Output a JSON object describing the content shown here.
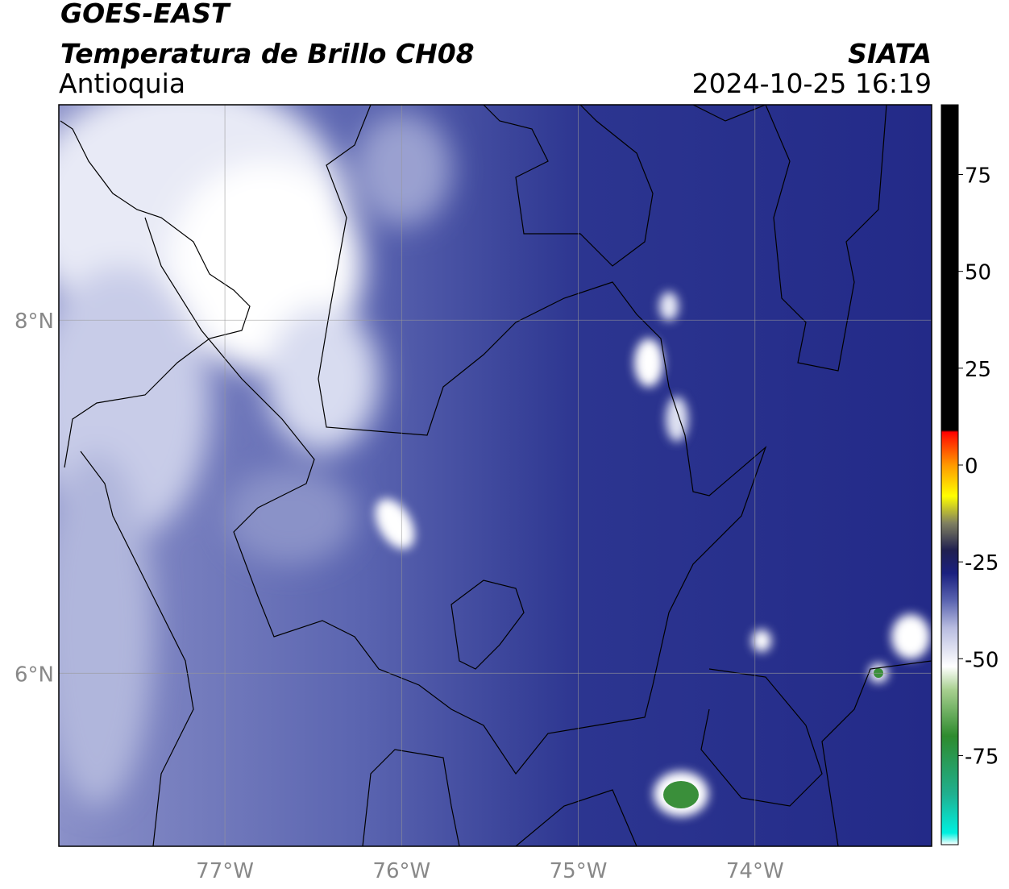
{
  "header": {
    "title": "GOES-EAST",
    "subtitle": "Temperatura de Brillo CH08",
    "region": "Antioquia",
    "source": "SIATA",
    "datetime": "2024-10-25 16:19"
  },
  "map": {
    "lonlim": [
      -77.94,
      -73.0
    ],
    "latlim": [
      5.02,
      9.22
    ],
    "lat_labels": [
      {
        "value": 8,
        "label": "8°N"
      },
      {
        "value": 6,
        "label": "6°N"
      }
    ],
    "lon_labels": [
      {
        "value": -77,
        "label": "77°W"
      },
      {
        "value": -76,
        "label": "76°W"
      },
      {
        "value": -75,
        "label": "75°W"
      },
      {
        "value": -74,
        "label": "74°W"
      }
    ]
  },
  "colorbar": {
    "lim": [
      -98,
      93
    ],
    "ticks": [
      75,
      50,
      25,
      0,
      -25,
      -50,
      -75
    ],
    "stops": [
      {
        "value": -98,
        "color": "#ffffff"
      },
      {
        "value": -95,
        "color": "#00f0e0"
      },
      {
        "value": -85,
        "color": "#20b090"
      },
      {
        "value": -70,
        "color": "#2e8b2e"
      },
      {
        "value": -58,
        "color": "#a8d090"
      },
      {
        "value": -52,
        "color": "#ffffff"
      },
      {
        "value": -42,
        "color": "#b8bce0"
      },
      {
        "value": -35,
        "color": "#5a64b0"
      },
      {
        "value": -28,
        "color": "#1a2080"
      },
      {
        "value": -22,
        "color": "#202050"
      },
      {
        "value": -15,
        "color": "#808060"
      },
      {
        "value": -8,
        "color": "#ffff00"
      },
      {
        "value": 0,
        "color": "#ff9900"
      },
      {
        "value": 7,
        "color": "#ff2000"
      },
      {
        "value": 8.5,
        "color": "#ff0000"
      },
      {
        "value": 9,
        "color": "#000000"
      },
      {
        "value": 93,
        "color": "#000000"
      }
    ]
  }
}
